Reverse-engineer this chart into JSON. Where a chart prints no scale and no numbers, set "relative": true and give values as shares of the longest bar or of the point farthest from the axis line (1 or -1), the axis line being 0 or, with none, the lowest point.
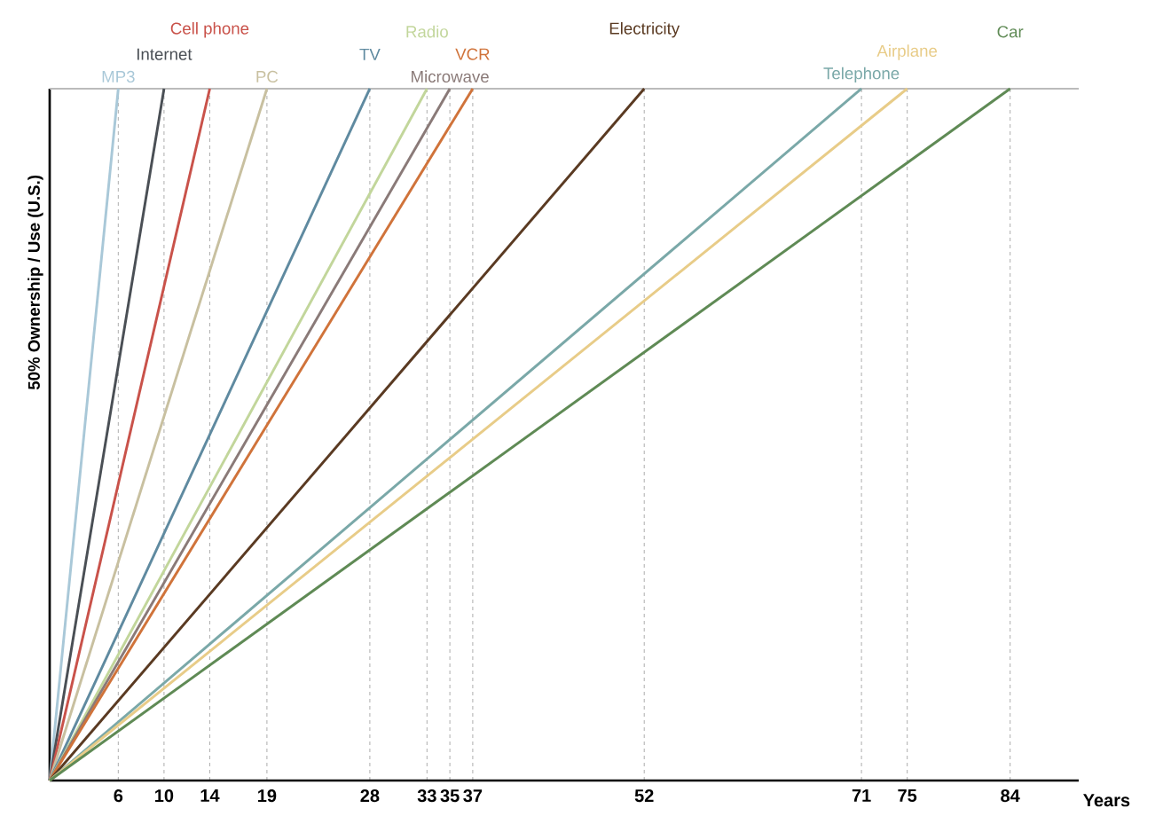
{
  "chart_data": {
    "type": "line",
    "relative": true,
    "xlabel": "Years",
    "ylabel": "50% Ownership / Use (U.S.)",
    "xlim": [
      0,
      90
    ],
    "xticks": [
      6,
      10,
      14,
      19,
      28,
      33,
      35,
      37,
      52,
      71,
      75,
      84
    ],
    "grid": "x",
    "marker": "none",
    "line_style": "solid",
    "ref_lines": [
      {
        "axis": "y",
        "value": 1,
        "color": "#bbbbbb"
      }
    ],
    "series": [
      {
        "name": "MP3",
        "color": "#a9c8d8",
        "x": [
          0,
          6
        ],
        "values": [
          0,
          1
        ]
      },
      {
        "name": "Internet",
        "color": "#4a4f55",
        "x": [
          0,
          10
        ],
        "values": [
          0,
          1
        ]
      },
      {
        "name": "Cell phone",
        "color": "#c9524a",
        "x": [
          0,
          14
        ],
        "values": [
          0,
          1
        ]
      },
      {
        "name": "PC",
        "color": "#c8c0a0",
        "x": [
          0,
          19
        ],
        "values": [
          0,
          1
        ]
      },
      {
        "name": "TV",
        "color": "#5f8aa0",
        "x": [
          0,
          28
        ],
        "values": [
          0,
          1
        ]
      },
      {
        "name": "Radio",
        "color": "#c2d69b",
        "x": [
          0,
          33
        ],
        "values": [
          0,
          1
        ]
      },
      {
        "name": "Microwave",
        "color": "#8a7a78",
        "x": [
          0,
          35
        ],
        "values": [
          0,
          1
        ]
      },
      {
        "name": "VCR",
        "color": "#d0733a",
        "x": [
          0,
          37
        ],
        "values": [
          0,
          1
        ]
      },
      {
        "name": "Electricity",
        "color": "#5a3a22",
        "x": [
          0,
          52
        ],
        "values": [
          0,
          1
        ]
      },
      {
        "name": "Telephone",
        "color": "#7aa8a8",
        "x": [
          0,
          71
        ],
        "values": [
          0,
          1
        ]
      },
      {
        "name": "Airplane",
        "color": "#e8cc88",
        "x": [
          0,
          75
        ],
        "values": [
          0,
          1
        ]
      },
      {
        "name": "Car",
        "color": "#5f8a55",
        "x": [
          0,
          84
        ],
        "values": [
          0,
          1
        ]
      }
    ]
  }
}
